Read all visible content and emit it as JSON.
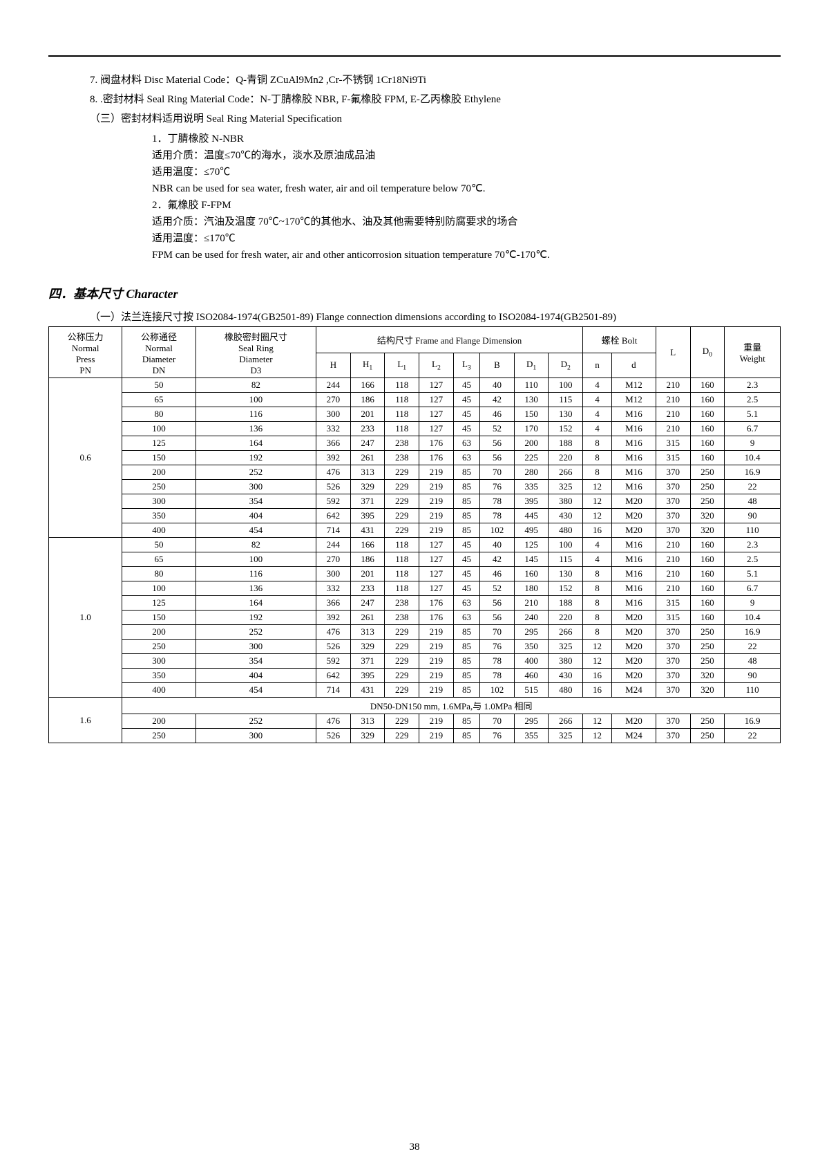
{
  "notes": {
    "item7": "7. 阀盘材料 Disc Material Code：Q-青铜 ZCuAl9Mn2 ,Cr-不锈钢 1Cr18Ni9Ti",
    "item8": "8. .密封材料 Seal Ring Material Code：N-丁腈橡胶 NBR, F-氟橡胶 FPM, E-乙丙橡胶  Ethylene",
    "sealHeading": "（三）密封材料适用说明 Seal Ring Material Specification",
    "s1": "1．丁腈橡胶 N-NBR",
    "s2": "适用介质：温度≤70℃的海水，淡水及原油成品油",
    "s3": "适用温度：≤70℃",
    "s4": "NBR can be used for sea water, fresh water, air and oil temperature below 70℃.",
    "s5": "2．氟橡胶 F-FPM",
    "s6": "适用介质：汽油及温度 70℃~170℃的其他水、油及其他需要特别防腐要求的场合",
    "s7": "适用温度：≤170℃",
    "s8": "FPM can be used for fresh water, air and other anticorrosion situation temperature 70℃-170℃."
  },
  "sectionTitle": "四．基本尺寸 Character",
  "tableCaption": "（一）法兰连接尺寸按 ISO2084-1974(GB2501-89) Flange connection dimensions according to ISO2084-1974(GB2501-89)",
  "headers": {
    "pnCn": "公称压力",
    "pnEn1": "Normal",
    "pnEn2": "Press",
    "pnEn3": "PN",
    "dnCn": "公称通径",
    "dnEn1": "Normal",
    "dnEn2": "Diameter",
    "dnEn3": "DN",
    "d3Cn": "橡胶密封圈尺寸",
    "d3En1": "Seal Ring",
    "d3En2": "Diameter",
    "d3En3": "D3",
    "frameGroup": "结构尺寸 Frame and Flange Dimension",
    "boltGroup": "螺栓 Bolt",
    "H": "H",
    "H1": "H",
    "H1sub": "1",
    "L1": "L",
    "L1sub": "1",
    "L2": "L",
    "L2sub": "2",
    "L3": "L",
    "L3sub": "3",
    "B": "B",
    "D1": "D",
    "D1sub": "1",
    "D2": "D",
    "D2sub": "2",
    "n": "n",
    "d": "d",
    "L": "L",
    "D0": "D",
    "D0sub": "0",
    "weightCn": "重量",
    "weightEn": "Weight"
  },
  "groups": [
    {
      "pn": "0.6",
      "rows": [
        [
          "50",
          "82",
          "244",
          "166",
          "118",
          "127",
          "45",
          "40",
          "110",
          "100",
          "4",
          "M12",
          "210",
          "160",
          "2.3"
        ],
        [
          "65",
          "100",
          "270",
          "186",
          "118",
          "127",
          "45",
          "42",
          "130",
          "115",
          "4",
          "M12",
          "210",
          "160",
          "2.5"
        ],
        [
          "80",
          "116",
          "300",
          "201",
          "118",
          "127",
          "45",
          "46",
          "150",
          "130",
          "4",
          "M16",
          "210",
          "160",
          "5.1"
        ],
        [
          "100",
          "136",
          "332",
          "233",
          "118",
          "127",
          "45",
          "52",
          "170",
          "152",
          "4",
          "M16",
          "210",
          "160",
          "6.7"
        ],
        [
          "125",
          "164",
          "366",
          "247",
          "238",
          "176",
          "63",
          "56",
          "200",
          "188",
          "8",
          "M16",
          "315",
          "160",
          "9"
        ],
        [
          "150",
          "192",
          "392",
          "261",
          "238",
          "176",
          "63",
          "56",
          "225",
          "220",
          "8",
          "M16",
          "315",
          "160",
          "10.4"
        ],
        [
          "200",
          "252",
          "476",
          "313",
          "229",
          "219",
          "85",
          "70",
          "280",
          "266",
          "8",
          "M16",
          "370",
          "250",
          "16.9"
        ],
        [
          "250",
          "300",
          "526",
          "329",
          "229",
          "219",
          "85",
          "76",
          "335",
          "325",
          "12",
          "M16",
          "370",
          "250",
          "22"
        ],
        [
          "300",
          "354",
          "592",
          "371",
          "229",
          "219",
          "85",
          "78",
          "395",
          "380",
          "12",
          "M20",
          "370",
          "250",
          "48"
        ],
        [
          "350",
          "404",
          "642",
          "395",
          "229",
          "219",
          "85",
          "78",
          "445",
          "430",
          "12",
          "M20",
          "370",
          "320",
          "90"
        ],
        [
          "400",
          "454",
          "714",
          "431",
          "229",
          "219",
          "85",
          "102",
          "495",
          "480",
          "16",
          "M20",
          "370",
          "320",
          "110"
        ]
      ]
    },
    {
      "pn": "1.0",
      "rows": [
        [
          "50",
          "82",
          "244",
          "166",
          "118",
          "127",
          "45",
          "40",
          "125",
          "100",
          "4",
          "M16",
          "210",
          "160",
          "2.3"
        ],
        [
          "65",
          "100",
          "270",
          "186",
          "118",
          "127",
          "45",
          "42",
          "145",
          "115",
          "4",
          "M16",
          "210",
          "160",
          "2.5"
        ],
        [
          "80",
          "116",
          "300",
          "201",
          "118",
          "127",
          "45",
          "46",
          "160",
          "130",
          "8",
          "M16",
          "210",
          "160",
          "5.1"
        ],
        [
          "100",
          "136",
          "332",
          "233",
          "118",
          "127",
          "45",
          "52",
          "180",
          "152",
          "8",
          "M16",
          "210",
          "160",
          "6.7"
        ],
        [
          "125",
          "164",
          "366",
          "247",
          "238",
          "176",
          "63",
          "56",
          "210",
          "188",
          "8",
          "M16",
          "315",
          "160",
          "9"
        ],
        [
          "150",
          "192",
          "392",
          "261",
          "238",
          "176",
          "63",
          "56",
          "240",
          "220",
          "8",
          "M20",
          "315",
          "160",
          "10.4"
        ],
        [
          "200",
          "252",
          "476",
          "313",
          "229",
          "219",
          "85",
          "70",
          "295",
          "266",
          "8",
          "M20",
          "370",
          "250",
          "16.9"
        ],
        [
          "250",
          "300",
          "526",
          "329",
          "229",
          "219",
          "85",
          "76",
          "350",
          "325",
          "12",
          "M20",
          "370",
          "250",
          "22"
        ],
        [
          "300",
          "354",
          "592",
          "371",
          "229",
          "219",
          "85",
          "78",
          "400",
          "380",
          "12",
          "M20",
          "370",
          "250",
          "48"
        ],
        [
          "350",
          "404",
          "642",
          "395",
          "229",
          "219",
          "85",
          "78",
          "460",
          "430",
          "16",
          "M20",
          "370",
          "320",
          "90"
        ],
        [
          "400",
          "454",
          "714",
          "431",
          "229",
          "219",
          "85",
          "102",
          "515",
          "480",
          "16",
          "M24",
          "370",
          "320",
          "110"
        ]
      ]
    },
    {
      "pn": "1.6",
      "note": "DN50-DN150 mm, 1.6MPa,与 1.0MPa 相同",
      "rows": [
        [
          "200",
          "252",
          "476",
          "313",
          "229",
          "219",
          "85",
          "70",
          "295",
          "266",
          "12",
          "M20",
          "370",
          "250",
          "16.9"
        ],
        [
          "250",
          "300",
          "526",
          "329",
          "229",
          "219",
          "85",
          "76",
          "355",
          "325",
          "12",
          "M24",
          "370",
          "250",
          "22"
        ]
      ]
    }
  ],
  "pageNumber": "38"
}
